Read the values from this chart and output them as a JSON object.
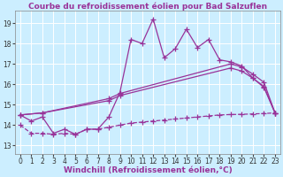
{
  "title": "Courbe du refroidissement éolien pour Bad Salzuflen",
  "xlabel": "Windchill (Refroidissement éolien,°C)",
  "bg_color": "#cceeff",
  "grid_color": "#aadddd",
  "line_color": "#993399",
  "x_ticks": [
    0,
    1,
    2,
    3,
    4,
    5,
    6,
    7,
    8,
    9,
    10,
    11,
    12,
    13,
    14,
    15,
    16,
    17,
    18,
    19,
    20,
    21,
    22,
    23
  ],
  "y_ticks": [
    13,
    14,
    15,
    16,
    17,
    18,
    19
  ],
  "ylim": [
    12.6,
    19.6
  ],
  "xlim": [
    -0.5,
    23.5
  ],
  "line1_x": [
    0,
    1,
    2,
    3,
    4,
    5,
    6,
    7,
    8,
    9,
    10,
    11,
    12,
    13,
    14,
    15,
    16,
    17,
    18,
    19,
    20,
    21,
    22,
    23
  ],
  "line1_y": [
    14.5,
    14.2,
    14.4,
    13.6,
    13.8,
    13.55,
    13.8,
    13.8,
    14.4,
    15.6,
    18.2,
    18.0,
    19.2,
    17.3,
    17.75,
    18.7,
    17.8,
    18.2,
    17.2,
    17.1,
    16.9,
    16.3,
    15.85,
    14.6
  ],
  "line2_x": [
    0,
    2,
    8,
    9,
    19,
    20,
    21,
    22,
    23
  ],
  "line2_y": [
    14.5,
    14.6,
    15.3,
    15.55,
    17.0,
    16.85,
    16.5,
    16.1,
    14.6
  ],
  "line3_x": [
    0,
    2,
    8,
    9,
    19,
    20,
    21,
    22,
    23
  ],
  "line3_y": [
    14.5,
    14.6,
    15.2,
    15.45,
    16.8,
    16.65,
    16.3,
    15.9,
    14.6
  ],
  "line4_x": [
    0,
    1,
    2,
    3,
    4,
    5,
    6,
    7,
    8,
    9,
    10,
    11,
    12,
    13,
    14,
    15,
    16,
    17,
    18,
    19,
    20,
    21,
    22,
    23
  ],
  "line4_y": [
    14.0,
    13.6,
    13.6,
    13.55,
    13.6,
    13.55,
    13.8,
    13.8,
    13.9,
    14.0,
    14.1,
    14.15,
    14.2,
    14.25,
    14.3,
    14.35,
    14.4,
    14.45,
    14.5,
    14.52,
    14.53,
    14.55,
    14.57,
    14.6
  ],
  "marker": "+",
  "markersize": 4,
  "linewidth": 0.9,
  "tick_fontsize": 5.5,
  "xlabel_fontsize": 6.5,
  "title_fontsize": 6.5
}
